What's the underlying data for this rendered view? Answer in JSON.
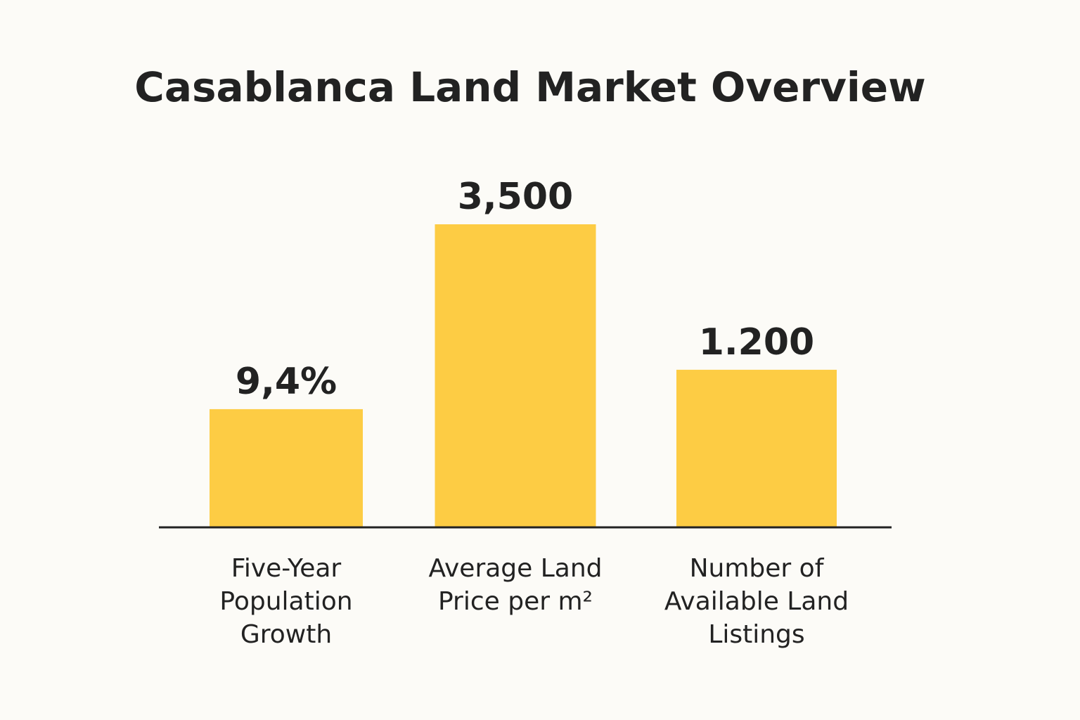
{
  "chart_data": {
    "type": "bar",
    "title": "Casablanca Land Market Overview",
    "categories": [
      [
        "Five-Year",
        "Population",
        "Growth"
      ],
      [
        "Average Land",
        "Price per m²"
      ],
      [
        "Number of",
        "Available Land",
        "Listings"
      ]
    ],
    "values": [
      9.4,
      3500,
      1200
    ],
    "value_labels": [
      "9,4%",
      "3,500",
      "1.200"
    ],
    "bar_heights_relative": [
      0.39,
      1.0,
      0.52
    ],
    "xlabel": "",
    "ylabel": "",
    "grid": false,
    "legend": "none",
    "colors": {
      "bar": "#fdcc44",
      "axis": "#222222",
      "text": "#222222",
      "background": "#fcfbf7"
    }
  }
}
